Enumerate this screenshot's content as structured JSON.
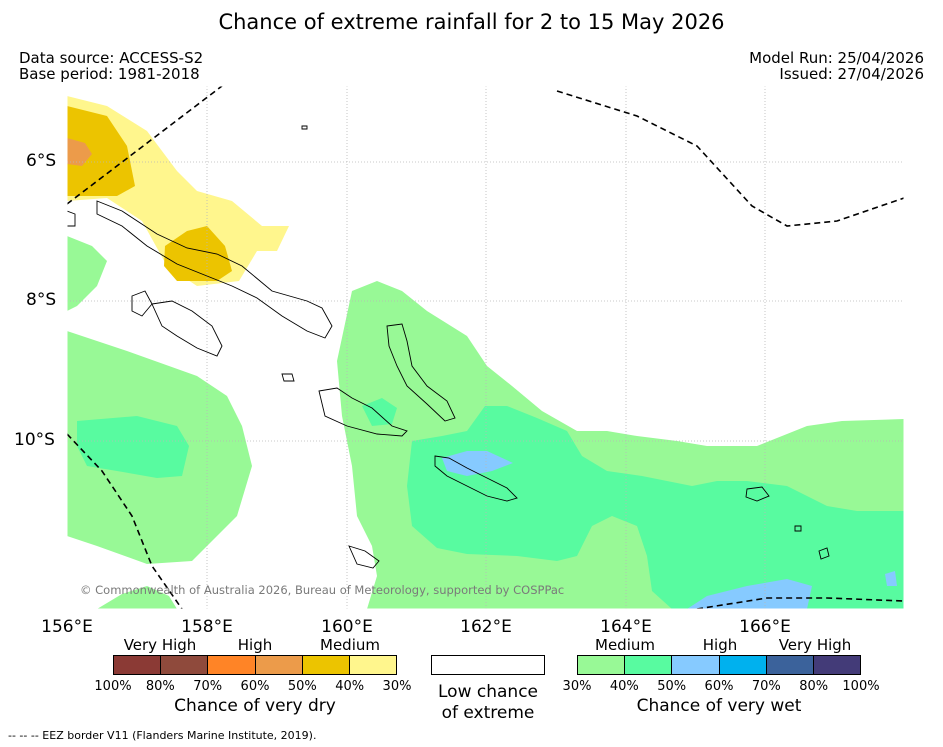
{
  "title": "Chance of extreme rainfall for 2 to 15 May 2026",
  "meta": {
    "data_source": "Data source: ACCESS-S2",
    "base_period": "Base period: 1981-2018",
    "model_run": "Model Run: 25/04/2026",
    "issued": "Issued: 27/04/2026"
  },
  "map": {
    "lat_labels": [
      "6°S",
      "8°S",
      "10°S"
    ],
    "lon_labels": [
      "156°E",
      "158°E",
      "160°E",
      "162°E",
      "164°E",
      "166°E"
    ],
    "credit": "© Commonwealth of Australia 2026, Bureau of Meteorology, supported by COSPPac"
  },
  "legend": {
    "dry": {
      "categories": [
        "Very High",
        "High",
        "Medium"
      ],
      "ticks": [
        "100%",
        "80%",
        "70%",
        "60%",
        "50%",
        "40%",
        "30%"
      ],
      "colors": [
        "#8b3a35",
        "#8f4a3c",
        "#ff8426",
        "#ec9b4a",
        "#ecc400",
        "#fff68d"
      ],
      "title": "Chance of very dry"
    },
    "low": {
      "title_line1": "Low chance",
      "title_line2": "of extreme"
    },
    "wet": {
      "categories": [
        "Medium",
        "High",
        "Very High"
      ],
      "ticks": [
        "30%",
        "40%",
        "50%",
        "60%",
        "70%",
        "80%",
        "100%"
      ],
      "colors": [
        "#98f996",
        "#58fba0",
        "#86caff",
        "#00b1ee",
        "#3b629b",
        "#433b78"
      ],
      "title": "Chance of very wet"
    }
  },
  "footnote": "--  --  -- EEZ border V11 (Flanders Marine Institute, 2019)."
}
